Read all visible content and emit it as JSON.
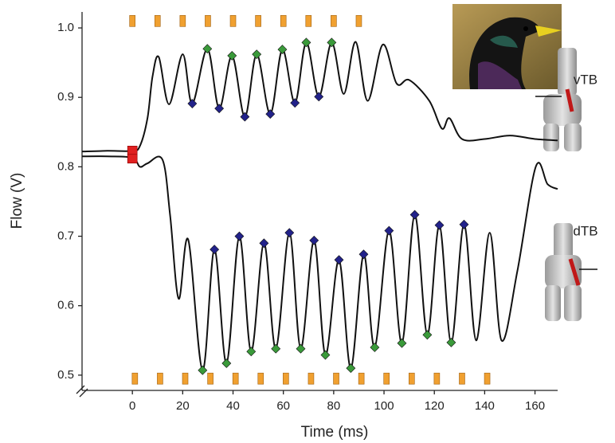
{
  "chart_data": {
    "type": "line",
    "xlabel": "Time (ms)",
    "ylabel": "Flow (V)",
    "xlim": [
      -20,
      169
    ],
    "ylim": [
      0.478,
      1.023
    ],
    "xticks": [
      0,
      20,
      40,
      60,
      80,
      100,
      120,
      140,
      160
    ],
    "yticks": [
      0.5,
      0.6,
      0.7,
      0.8,
      0.9,
      {
        "value": 1,
        "label": "1.0"
      }
    ],
    "traces": [
      {
        "label": "vTB",
        "color": "#111111",
        "x": [
          -20,
          -10,
          0,
          3,
          6,
          8,
          10.5,
          14.6,
          20,
          23.8,
          29.8,
          34.5,
          39.6,
          44.7,
          49.4,
          54.8,
          59.6,
          64.6,
          69.1,
          74.1,
          79.2,
          84,
          88.7,
          93.5,
          99.5,
          105,
          110,
          118,
          123,
          126,
          131,
          140,
          150,
          160,
          169
        ],
        "values": [
          0.822,
          0.823,
          0.823,
          0.83,
          0.87,
          0.93,
          0.958,
          0.89,
          0.962,
          0.891,
          0.97,
          0.884,
          0.96,
          0.872,
          0.962,
          0.876,
          0.969,
          0.892,
          0.979,
          0.901,
          0.979,
          0.905,
          0.98,
          0.895,
          0.976,
          0.92,
          0.925,
          0.895,
          0.855,
          0.87,
          0.84,
          0.84,
          0.845,
          0.84,
          0.838
        ]
      },
      {
        "label": "dTB",
        "color": "#111111",
        "x": [
          -20,
          -10,
          0,
          3,
          6,
          12,
          15,
          18.4,
          22.2,
          27.9,
          32.6,
          37.4,
          42.5,
          47.2,
          52.3,
          57,
          62.4,
          66.9,
          72.2,
          76.7,
          82.1,
          86.8,
          91.9,
          96.3,
          102,
          107.1,
          112.2,
          117.2,
          122,
          126.7,
          131.8,
          136.6,
          142,
          146.7,
          153,
          160.3,
          165,
          169
        ],
        "values": [
          0.815,
          0.815,
          0.813,
          0.8,
          0.805,
          0.81,
          0.73,
          0.61,
          0.695,
          0.507,
          0.681,
          0.517,
          0.7,
          0.534,
          0.69,
          0.538,
          0.705,
          0.538,
          0.694,
          0.529,
          0.666,
          0.51,
          0.674,
          0.54,
          0.708,
          0.546,
          0.731,
          0.558,
          0.716,
          0.547,
          0.717,
          0.55,
          0.705,
          0.55,
          0.65,
          0.8,
          0.775,
          0.768
        ]
      }
    ],
    "markers": [
      {
        "color": "#3a9a3a",
        "x": [
          29.8,
          39.6,
          49.4,
          59.6,
          69.1,
          79.2,
          27.9,
          37.4,
          47.2,
          57,
          66.9,
          76.7,
          86.8,
          96.3,
          107.1,
          117.2,
          126.7
        ],
        "values": [
          0.97,
          0.96,
          0.962,
          0.969,
          0.979,
          0.979,
          0.507,
          0.517,
          0.534,
          0.538,
          0.538,
          0.529,
          0.51,
          0.54,
          0.546,
          0.558,
          0.547
        ]
      },
      {
        "color": "#22228a",
        "x": [
          23.8,
          34.5,
          44.7,
          54.8,
          64.6,
          74.1,
          32.6,
          42.5,
          52.3,
          62.4,
          72.2,
          82.1,
          91.9,
          102,
          112.2,
          122,
          131.8
        ],
        "values": [
          0.891,
          0.884,
          0.872,
          0.876,
          0.892,
          0.901,
          0.681,
          0.7,
          0.69,
          0.705,
          0.694,
          0.666,
          0.674,
          0.708,
          0.731,
          0.716,
          0.717
        ]
      }
    ],
    "stimulus_marks": {
      "color": "#f0a030",
      "top_y": 1.01,
      "top_x": [
        0,
        10,
        20,
        30,
        40,
        50,
        60,
        70,
        80,
        90
      ],
      "bottom_y": 0.495,
      "bottom_x": [
        1,
        11,
        21,
        31,
        41,
        51,
        61,
        71,
        81,
        91,
        101,
        111,
        121,
        131,
        141
      ]
    },
    "start_marks": {
      "color": "#e02020",
      "x": [
        0,
        0
      ],
      "values": [
        0.823,
        0.811
      ]
    }
  }
}
